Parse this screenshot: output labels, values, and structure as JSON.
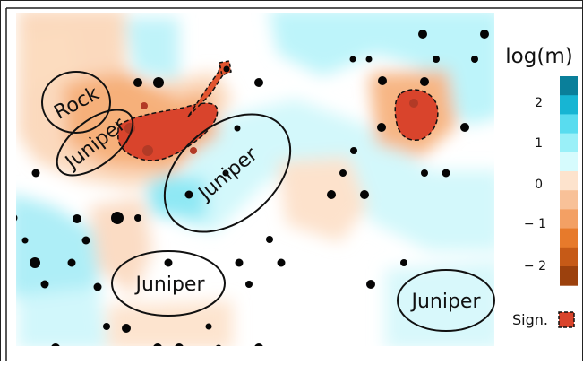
{
  "legend": {
    "title": "log(m)",
    "ticks": [
      "2",
      "1",
      "0",
      "− 1",
      "− 2"
    ],
    "significance_label": "Sign.",
    "colors": [
      "#0a7f9a",
      "#17b5d3",
      "#59dcef",
      "#9af0f8",
      "#d6fbfd",
      "#fde3cd",
      "#f8c198",
      "#f3a064",
      "#e77a2b",
      "#c65a17",
      "#9c410d"
    ],
    "significance_color": "#d9442c"
  },
  "regions": [
    {
      "key": "rock",
      "label": "Rock"
    },
    {
      "key": "juniper_1",
      "label": "Juniper"
    },
    {
      "key": "juniper_2",
      "label": "Juniper"
    },
    {
      "key": "juniper_3",
      "label": "Juniper"
    },
    {
      "key": "juniper_4",
      "label": "Juniper"
    }
  ],
  "sample_points": 63
}
